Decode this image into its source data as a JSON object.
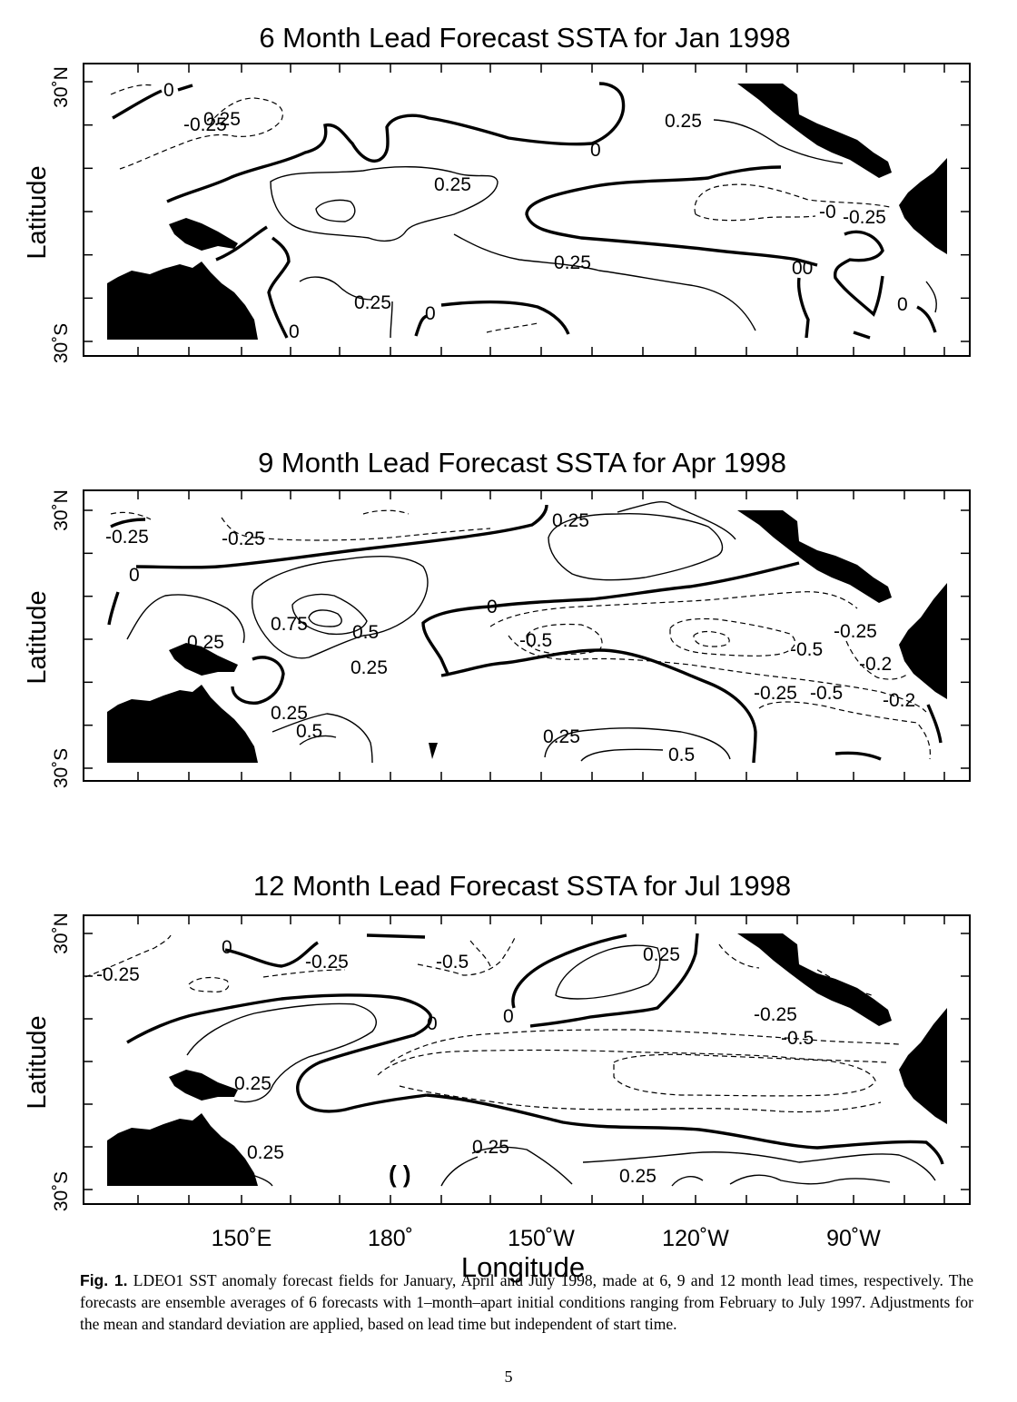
{
  "panels": [
    {
      "title": "6 Month Lead Forecast SSTA for Jan 1998",
      "ylabel": "Latitude",
      "y_ticks": [
        "30˚N",
        "30˚S"
      ],
      "contour_labels": [
        "0",
        "-0.25",
        "0.25",
        "0",
        "0.25",
        "0.25",
        "-0",
        "-0.25",
        "0.25",
        "0.25",
        "0",
        "0",
        "00",
        "0"
      ]
    },
    {
      "title": "9 Month Lead Forecast SSTA for Apr 1998",
      "ylabel": "Latitude",
      "y_ticks": [
        "30˚N",
        "30˚S"
      ],
      "contour_labels": [
        "-0.25",
        "-0.25",
        "0.25",
        "0",
        "0",
        "0.75",
        "0.5",
        "0.25",
        "0.25",
        "0.25",
        "0.5",
        "-0.5",
        "-0.25",
        "-0.5",
        "-0.2",
        "-0.25",
        "-0.5",
        "-0.2",
        "0.25",
        "0.5"
      ]
    },
    {
      "title": "12 Month Lead Forecast SSTA for Jul 1998",
      "ylabel": "Latitude",
      "y_ticks": [
        "30˚N",
        "30˚S"
      ],
      "contour_labels": [
        "-0.25",
        "0",
        "-0.25",
        "-0.5",
        "0.25",
        "0",
        "0",
        "-0.25",
        "-0.5",
        "0.25",
        "0.25",
        "0.25",
        "0.25"
      ]
    }
  ],
  "x_tick_labels": [
    "150˚E",
    "180˚",
    "150˚W",
    "120˚W",
    "90˚W"
  ],
  "xlabel": "Longitude",
  "caption": {
    "lead": "Fig. 1.",
    "text": "LDEO1 SST anomaly forecast fields for January, April and July 1998, made at 6, 9 and 12 month lead times, respectively. The forecasts are ensemble averages of 6 forecasts with 1–month–apart initial conditions ranging from February to July 1997. Adjustments for the mean and standard deviation are applied, based on lead time but independent of start time."
  },
  "page_number": "5"
}
